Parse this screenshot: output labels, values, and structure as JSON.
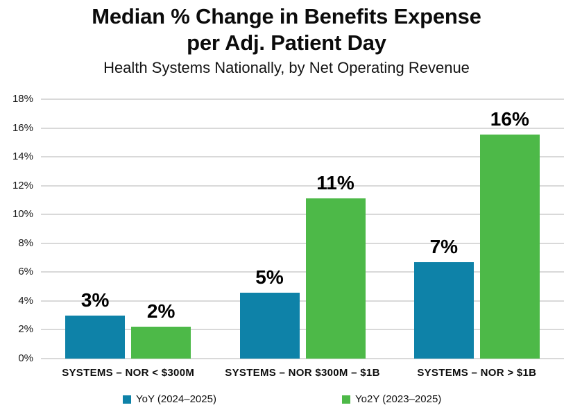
{
  "header": {
    "title_line1": "Median % Change in Benefits Expense",
    "title_line2": "per Adj. Patient Day",
    "subtitle": "Health Systems Nationally, by Net Operating Revenue"
  },
  "chart_data": {
    "type": "bar",
    "title": "Median % Change in Benefits Expense per Adj. Patient Day",
    "subtitle": "Health Systems Nationally, by Net Operating Revenue",
    "categories": [
      "SYSTEMS – NOR < $300M",
      "SYSTEMS – NOR $300M – $1B",
      "SYSTEMS – NOR > $1B"
    ],
    "series": [
      {
        "key": "yoy",
        "name": "YoY (2024–2025)",
        "color": "#0E82A8",
        "values": [
          3.0,
          4.55,
          6.7
        ],
        "labels": [
          "3%",
          "5%",
          "7%"
        ]
      },
      {
        "key": "yo2y",
        "name": "Yo2Y (2023–2025)",
        "color": "#4DB948",
        "values": [
          2.2,
          11.1,
          15.55
        ],
        "labels": [
          "2%",
          "11%",
          "16%"
        ]
      }
    ],
    "y_axis": {
      "min": 0,
      "max": 18,
      "step": 2,
      "suffix": "%"
    },
    "grid": true,
    "grid_color": "#D9D9D9",
    "legend_position": "bottom"
  }
}
